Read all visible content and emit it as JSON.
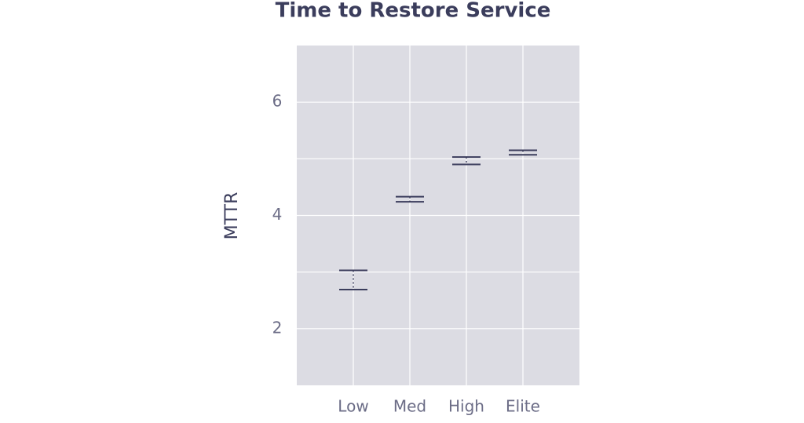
{
  "chart_data": {
    "type": "errorbar",
    "title": "Time to Restore Service",
    "ylabel": "MTTR",
    "categories": [
      "Low",
      "Med",
      "High",
      "Elite"
    ],
    "lower": [
      2.69,
      4.24,
      4.9,
      5.07
    ],
    "upper": [
      3.03,
      4.33,
      5.03,
      5.15
    ],
    "color": "#3b3d5c",
    "ylim": [
      1,
      7
    ],
    "yticks": [
      2,
      4,
      6
    ],
    "ygrid": [
      2,
      3,
      4,
      5,
      6
    ],
    "grid": true
  }
}
